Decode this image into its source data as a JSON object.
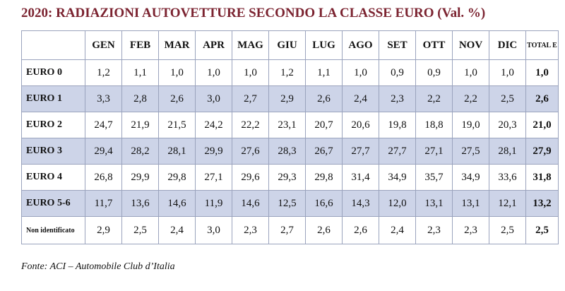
{
  "title": "2020: RADIAZIONI AUTOVETTURE SECONDO LA CLASSE EURO (Val. %)",
  "source": "Fonte: ACI – Automobile Club d’Italia",
  "chart_data": {
    "type": "table",
    "title": "2020: RADIAZIONI AUTOVETTURE SECONDO LA CLASSE EURO (Val. %)",
    "columns": [
      "GEN",
      "FEB",
      "MAR",
      "APR",
      "MAG",
      "GIU",
      "LUG",
      "AGO",
      "SET",
      "OTT",
      "NOV",
      "DIC",
      "TOTAL E"
    ],
    "rows": [
      {
        "label": "EURO 0",
        "values": [
          "1,2",
          "1,1",
          "1,0",
          "1,0",
          "1,0",
          "1,2",
          "1,1",
          "1,0",
          "0,9",
          "0,9",
          "1,0",
          "1,0",
          "1,0"
        ]
      },
      {
        "label": "EURO 1",
        "values": [
          "3,3",
          "2,8",
          "2,6",
          "3,0",
          "2,7",
          "2,9",
          "2,6",
          "2,4",
          "2,3",
          "2,2",
          "2,2",
          "2,5",
          "2,6"
        ]
      },
      {
        "label": "EURO 2",
        "values": [
          "24,7",
          "21,9",
          "21,5",
          "24,2",
          "22,2",
          "23,1",
          "20,7",
          "20,6",
          "19,8",
          "18,8",
          "19,0",
          "20,3",
          "21,0"
        ]
      },
      {
        "label": "EURO 3",
        "values": [
          "29,4",
          "28,2",
          "28,1",
          "29,9",
          "27,6",
          "28,3",
          "26,7",
          "27,7",
          "27,7",
          "27,1",
          "27,5",
          "28,1",
          "27,9"
        ]
      },
      {
        "label": "EURO 4",
        "values": [
          "26,8",
          "29,9",
          "29,8",
          "27,1",
          "29,6",
          "29,3",
          "29,8",
          "31,4",
          "34,9",
          "35,7",
          "34,9",
          "33,6",
          "31,8"
        ]
      },
      {
        "label": "EURO 5-6",
        "values": [
          "11,7",
          "13,6",
          "14,6",
          "11,9",
          "14,6",
          "12,5",
          "16,6",
          "14,3",
          "12,0",
          "13,1",
          "13,1",
          "12,1",
          "13,2"
        ]
      },
      {
        "label": "Non identificato",
        "values": [
          "2,9",
          "2,5",
          "2,4",
          "3,0",
          "2,3",
          "2,7",
          "2,6",
          "2,6",
          "2,4",
          "2,3",
          "2,3",
          "2,5",
          "2,5"
        ]
      }
    ]
  }
}
